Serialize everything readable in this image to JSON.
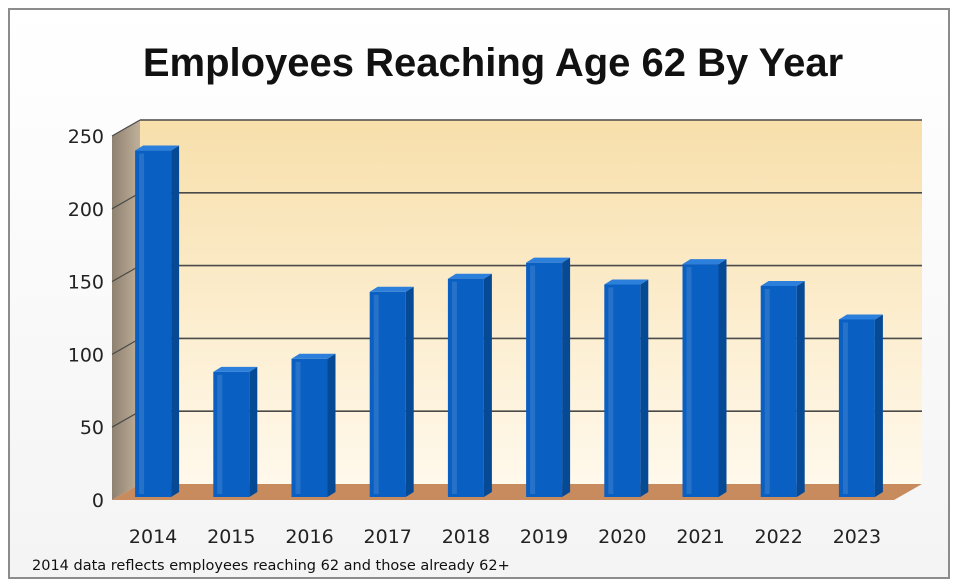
{
  "chart_data": {
    "type": "bar",
    "title": "Employees Reaching Age 62 By Year",
    "categories": [
      "2014",
      "2015",
      "2016",
      "2017",
      "2018",
      "2019",
      "2020",
      "2021",
      "2022",
      "2023"
    ],
    "values": [
      240,
      88,
      97,
      143,
      152,
      163,
      148,
      162,
      147,
      124
    ],
    "ylim": [
      0,
      250
    ],
    "yticks": [
      "0",
      "50",
      "100",
      "150",
      "200",
      "250"
    ],
    "grid": true,
    "legend": "none",
    "footnote": "2014 data reflects employees reaching 62 and those already 62+",
    "colors": {
      "bar_front": "#0a5fc2",
      "bar_side": "#064a96",
      "bar_top": "#2c80dc",
      "wall_top": "#f8dfab",
      "wall_bottom": "#fff9ec",
      "side_wall": "#a89a84",
      "floor": "#c88b5e",
      "gridline": "#4a4a4a"
    }
  }
}
